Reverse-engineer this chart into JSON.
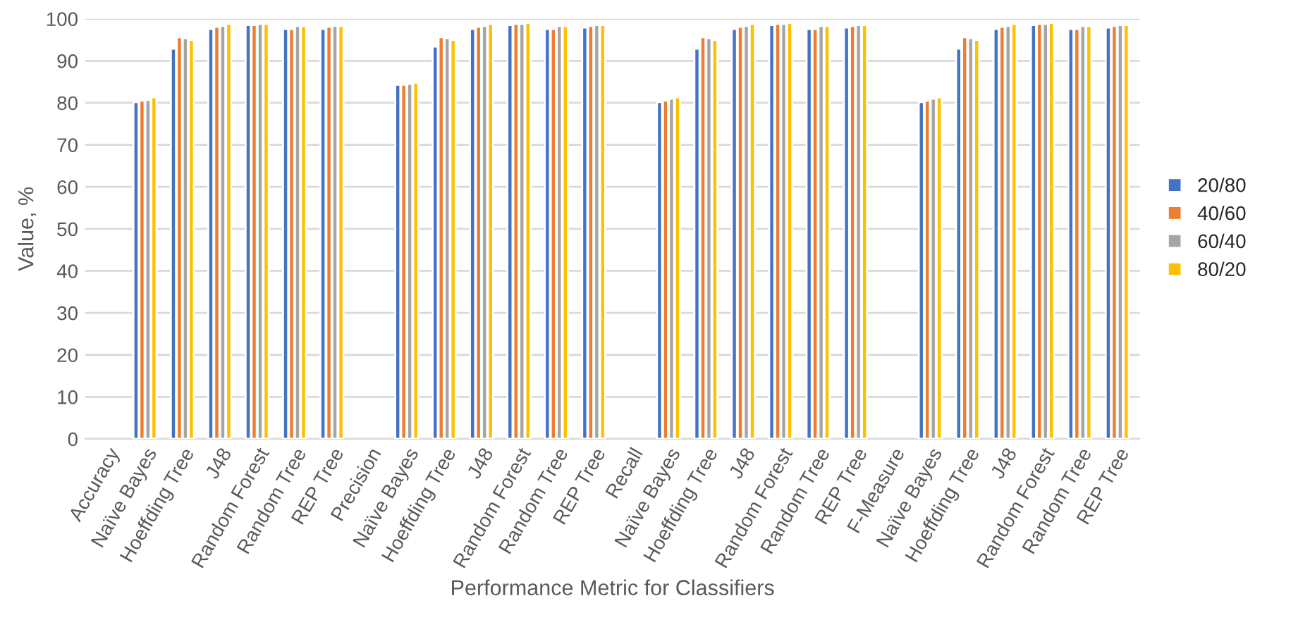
{
  "chart_data": {
    "type": "bar",
    "xlabel": "Performance Metric for Classifiers",
    "ylabel": "Value, %",
    "categories": [
      "Accuracy",
      "Naïve Bayes",
      "Hoeffding Tree",
      "J48",
      "Random Forest",
      "Random Tree",
      "REP Tree",
      "Precision",
      "Naïve Bayes",
      "Hoeffding Tree",
      "J48",
      "Random Forest",
      "Random Tree",
      "REP Tree",
      "Recall",
      "Naïve Bayes",
      "Hoeffding Tree",
      "J48",
      "Random Forest",
      "Random Tree",
      "REP Tree",
      "F-Measure",
      "Naïve Bayes",
      "Hoeffding Tree",
      "J48",
      "Random Forest",
      "Random Tree",
      "REP Tree"
    ],
    "series": [
      {
        "name": "20/80",
        "color": "#4472c4",
        "values": [
          null,
          80.2,
          92.9,
          97.6,
          98.5,
          97.6,
          97.6,
          null,
          84.3,
          93.4,
          97.6,
          98.5,
          97.6,
          97.9,
          null,
          80.2,
          92.9,
          97.6,
          98.5,
          97.6,
          97.9,
          null,
          80.2,
          92.9,
          97.6,
          98.5,
          97.6,
          97.9
        ]
      },
      {
        "name": "40/60",
        "color": "#ed7d31",
        "values": [
          null,
          80.5,
          95.6,
          98.1,
          98.5,
          97.6,
          98.1,
          null,
          84.3,
          95.6,
          98.1,
          98.8,
          97.6,
          98.3,
          null,
          80.5,
          95.6,
          98.1,
          98.8,
          97.6,
          98.3,
          null,
          80.5,
          95.6,
          98.1,
          98.8,
          97.6,
          98.3
        ]
      },
      {
        "name": "60/40",
        "color": "#a5a5a5",
        "values": [
          null,
          80.7,
          95.4,
          98.3,
          98.8,
          98.3,
          98.3,
          null,
          84.5,
          95.4,
          98.3,
          98.8,
          98.3,
          98.5,
          null,
          81.0,
          95.4,
          98.3,
          98.8,
          98.3,
          98.5,
          null,
          81.0,
          95.4,
          98.3,
          98.8,
          98.3,
          98.5
        ]
      },
      {
        "name": "80/20",
        "color": "#ffc000",
        "values": [
          null,
          81.3,
          95.0,
          98.8,
          98.8,
          98.3,
          98.3,
          null,
          84.8,
          95.0,
          98.8,
          99.0,
          98.3,
          98.5,
          null,
          81.3,
          95.0,
          98.8,
          99.0,
          98.3,
          98.5,
          null,
          81.3,
          95.0,
          98.8,
          99.0,
          98.3,
          98.5
        ]
      }
    ],
    "ylim": [
      0,
      100
    ],
    "yticks": [
      0,
      10,
      20,
      30,
      40,
      50,
      60,
      70,
      80,
      90,
      100
    ],
    "grid": "y",
    "legend": "right"
  }
}
